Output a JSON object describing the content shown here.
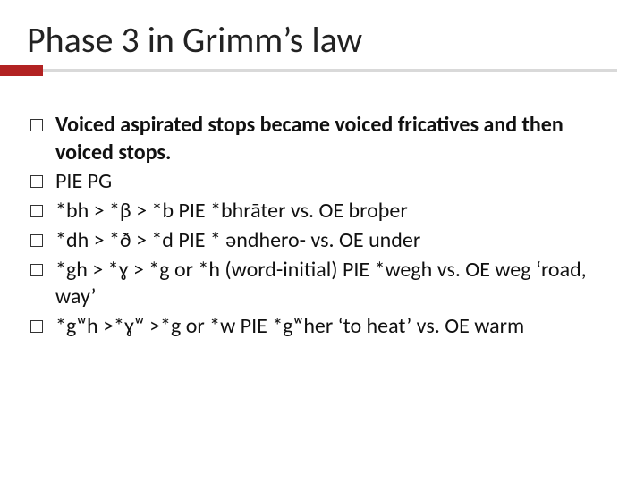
{
  "slide": {
    "title": "Phase 3 in Grimm’s law",
    "title_fontsize": 40,
    "title_color": "#222222",
    "rule_color": "#d9d9d9",
    "accent_color": "#b22222",
    "background_color": "#ffffff",
    "body_fontsize": 24,
    "body_color": "#111111",
    "bullet_box_border": "#333333",
    "bullets": [
      {
        "text": "Voiced aspirated stops became voiced fricatives and then voiced stops.",
        "bold": true
      },
      {
        "text": " PIE       PG",
        "bold": false
      },
      {
        "text": "*bh > *β > *b PIE *bhrāter vs. OE broþer",
        "bold": false
      },
      {
        "text": "*dh > *ð > *d PIE * əndhero- vs. OE under",
        "bold": false
      },
      {
        "text": "*gh  > *ɣ > *g or *h (word-initial) PIE *wegh vs. OE weg ‘road, way’",
        "bold": false
      },
      {
        "text": "*gʷh >*ɣʷ >*g or *w PIE *gʷher ‘to heat’ vs. OE warm",
        "bold": false
      }
    ]
  }
}
